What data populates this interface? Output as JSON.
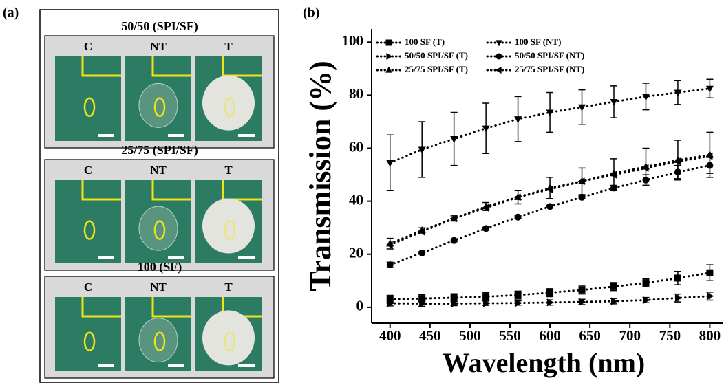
{
  "panel_a": {
    "label": "(a)",
    "groups": [
      {
        "title": "50/50 (SPI/SF)",
        "columns": [
          "C",
          "NT",
          "T"
        ]
      },
      {
        "title": "25/75 (SPI/SF)",
        "columns": [
          "C",
          "NT",
          "T"
        ]
      },
      {
        "title": "100 (SF)",
        "columns": [
          "C",
          "NT",
          "T"
        ]
      }
    ]
  },
  "chart_data": {
    "type": "line",
    "panel_label": "(b)",
    "x_label": "Wavelength (nm)",
    "y_label": "Transmission (%)",
    "x": [
      400,
      440,
      480,
      520,
      560,
      600,
      640,
      680,
      720,
      760,
      800
    ],
    "xlim": [
      377,
      816
    ],
    "xticks": [
      400,
      450,
      500,
      550,
      600,
      650,
      700,
      750,
      800
    ],
    "ylim": [
      -6,
      105
    ],
    "yticks": [
      0,
      20,
      40,
      60,
      80,
      100
    ],
    "legend": "upper left",
    "series": [
      {
        "name": "100 SF (T)",
        "color": "#000000",
        "marker": "square",
        "values": [
          3.0,
          3.3,
          3.6,
          4.0,
          4.6,
          5.5,
          6.5,
          7.8,
          9.2,
          11,
          13
        ],
        "errors": [
          1.5,
          1.5,
          1.5,
          1.5,
          1.5,
          1.5,
          1.5,
          1.5,
          1.5,
          2.5,
          3
        ]
      },
      {
        "name": "100 SF (NT)",
        "color": "#000000",
        "marker": "triangle-down",
        "values": [
          54.5,
          59.5,
          63.5,
          67.5,
          71,
          73.5,
          75.5,
          77.5,
          79.5,
          81,
          82.5
        ],
        "errors": [
          10.5,
          10.5,
          10,
          9.5,
          8.5,
          7.5,
          6.5,
          6,
          5,
          4.5,
          3.5
        ]
      },
      {
        "name": "50/50 SPI/SF (T)",
        "color": "#000000",
        "marker": "triangle-right",
        "values": [
          1.5,
          1.4,
          1.4,
          1.5,
          1.6,
          1.8,
          2,
          2.3,
          2.7,
          3.5,
          4.2
        ],
        "errors": [
          1,
          1,
          0.8,
          0.8,
          0.8,
          1,
          1,
          1,
          1,
          1.5,
          1.5
        ]
      },
      {
        "name": "50/50 SPI/SF (NT)",
        "color": "#000000",
        "marker": "circle",
        "values": [
          16,
          20.5,
          25.2,
          29.7,
          34,
          38,
          41.5,
          45,
          48,
          51,
          53.5
        ],
        "errors": [
          1,
          0.5,
          0.5,
          0.5,
          0.5,
          0.5,
          0.5,
          1,
          2,
          2.5,
          3
        ]
      },
      {
        "name": "25/75 SPI/SF (T)",
        "color": "#000000",
        "marker": "triangle-up",
        "values": [
          24,
          29,
          33.5,
          38,
          41.5,
          45,
          47.5,
          50.5,
          53,
          55.5,
          57.5
        ],
        "errors": [
          2,
          1,
          1,
          1.5,
          2.5,
          4,
          5,
          5.5,
          7,
          7.5,
          8.5
        ]
      },
      {
        "name": "25/75 SPI/SF (NT)",
        "color": "#000000",
        "marker": "triangle-left",
        "values": [
          23.5,
          28.5,
          33.5,
          37.5,
          41.5,
          44.5,
          47.5,
          50,
          52.5,
          55,
          57
        ]
      }
    ]
  }
}
